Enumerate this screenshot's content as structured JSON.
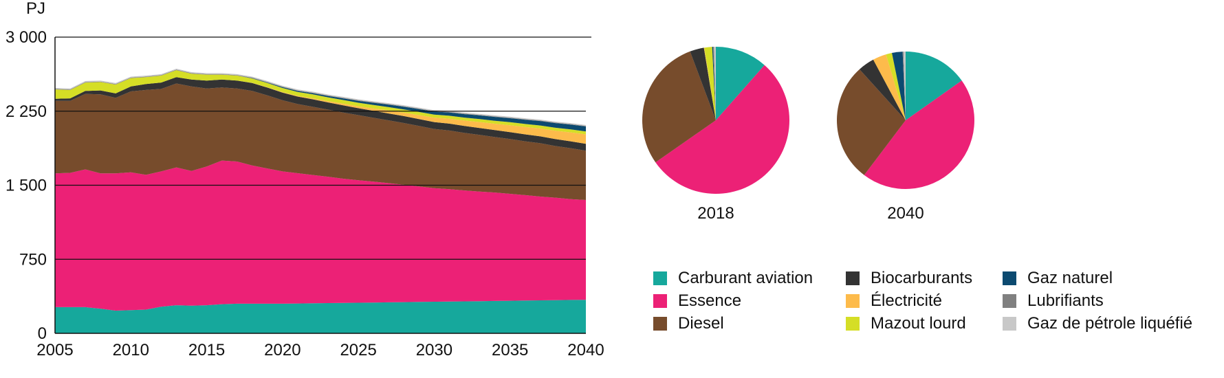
{
  "chart_data": [
    {
      "type": "area",
      "stacked": true,
      "ylabel": "PJ",
      "ylim": [
        0,
        3000
      ],
      "yticks": [
        0,
        750,
        1500,
        2250,
        3000
      ],
      "ytick_labels": [
        "0",
        "750",
        "1 500",
        "2 250",
        "3 000"
      ],
      "xlim": [
        2005,
        2040
      ],
      "xticks": [
        2005,
        2010,
        2015,
        2020,
        2025,
        2030,
        2035,
        2040
      ],
      "xtick_labels": [
        "2005",
        "2010",
        "2015",
        "2020",
        "2025",
        "2030",
        "2035",
        "2040"
      ],
      "grid": "horizontal",
      "x": [
        2005,
        2006,
        2007,
        2008,
        2009,
        2010,
        2011,
        2012,
        2013,
        2014,
        2015,
        2016,
        2017,
        2018,
        2019,
        2020,
        2021,
        2022,
        2023,
        2024,
        2025,
        2026,
        2027,
        2028,
        2029,
        2030,
        2031,
        2032,
        2033,
        2034,
        2035,
        2036,
        2037,
        2038,
        2039,
        2040
      ],
      "series": [
        {
          "name": "Carburant aviation",
          "color": "#16A89C",
          "values": [
            265,
            265,
            265,
            250,
            230,
            235,
            240,
            270,
            285,
            280,
            285,
            295,
            300,
            300,
            300,
            300,
            302,
            304,
            306,
            308,
            310,
            312,
            314,
            316,
            318,
            320,
            322,
            324,
            326,
            328,
            330,
            332,
            334,
            336,
            338,
            340
          ]
        },
        {
          "name": "Essence",
          "color": "#EC2176",
          "values": [
            1355,
            1360,
            1395,
            1370,
            1390,
            1395,
            1365,
            1370,
            1395,
            1365,
            1405,
            1455,
            1440,
            1400,
            1370,
            1340,
            1320,
            1300,
            1280,
            1258,
            1240,
            1224,
            1207,
            1188,
            1170,
            1150,
            1138,
            1123,
            1110,
            1098,
            1083,
            1068,
            1051,
            1038,
            1021,
            1010
          ]
        },
        {
          "name": "Diesel",
          "color": "#774C2C",
          "values": [
            735,
            730,
            765,
            800,
            765,
            820,
            860,
            835,
            850,
            855,
            790,
            740,
            740,
            755,
            740,
            720,
            700,
            690,
            680,
            670,
            660,
            647,
            636,
            626,
            612,
            600,
            594,
            583,
            574,
            562,
            555,
            545,
            540,
            523,
            516,
            500
          ]
        },
        {
          "name": "Biocarburants",
          "color": "#333333",
          "values": [
            20,
            25,
            30,
            40,
            45,
            50,
            60,
            65,
            65,
            70,
            80,
            80,
            80,
            80,
            79,
            78,
            76,
            76,
            73,
            73,
            70,
            70,
            70,
            70,
            70,
            70,
            70,
            70,
            70,
            70,
            70,
            70,
            70,
            70,
            70,
            70
          ]
        },
        {
          "name": "Électricité",
          "color": "#FDBB4B",
          "values": [
            0,
            0,
            0,
            0,
            0,
            0,
            0,
            0,
            0,
            0,
            0,
            0,
            0,
            2,
            3,
            5,
            7,
            10,
            13,
            17,
            20,
            25,
            30,
            35,
            40,
            45,
            50,
            55,
            60,
            65,
            70,
            75,
            80,
            85,
            90,
            95
          ]
        },
        {
          "name": "Mazout lourd",
          "color": "#D5DE26",
          "values": [
            95,
            85,
            85,
            85,
            90,
            85,
            70,
            70,
            70,
            60,
            60,
            50,
            50,
            45,
            43,
            42,
            40,
            40,
            38,
            37,
            35,
            35,
            34,
            33,
            32,
            30,
            30,
            30,
            30,
            30,
            30,
            30,
            30,
            30,
            30,
            30
          ]
        },
        {
          "name": "Gaz naturel",
          "color": "#0C4A70",
          "values": [
            0,
            0,
            0,
            0,
            0,
            0,
            0,
            0,
            0,
            0,
            0,
            0,
            0,
            3,
            5,
            8,
            10,
            12,
            14,
            17,
            20,
            22,
            25,
            27,
            29,
            31,
            33,
            35,
            37,
            39,
            41,
            43,
            45,
            47,
            49,
            50
          ]
        },
        {
          "name": "Lubrifiants",
          "color": "#808080",
          "values": [
            5,
            5,
            5,
            5,
            5,
            5,
            5,
            5,
            5,
            5,
            5,
            5,
            5,
            5,
            5,
            5,
            5,
            5,
            5,
            5,
            5,
            5,
            5,
            5,
            5,
            5,
            5,
            5,
            5,
            5,
            5,
            5,
            5,
            5,
            5,
            5
          ]
        },
        {
          "name": "Gaz de pétrole liquéfié",
          "color": "#C8C8C8",
          "values": [
            10,
            10,
            10,
            10,
            10,
            10,
            10,
            10,
            10,
            10,
            10,
            10,
            10,
            10,
            10,
            10,
            10,
            10,
            10,
            10,
            10,
            10,
            10,
            10,
            10,
            10,
            10,
            10,
            10,
            10,
            10,
            10,
            10,
            10,
            10,
            10
          ]
        }
      ]
    },
    {
      "type": "pie",
      "label": "2018",
      "slices": [
        {
          "name": "Carburant aviation",
          "color": "#16A89C",
          "value": 11.5
        },
        {
          "name": "Essence",
          "color": "#EC2176",
          "value": 53.8
        },
        {
          "name": "Diesel",
          "color": "#774C2C",
          "value": 29.0
        },
        {
          "name": "Biocarburants",
          "color": "#333333",
          "value": 3.1
        },
        {
          "name": "Électricité",
          "color": "#FDBB4B",
          "value": 0.1
        },
        {
          "name": "Mazout lourd",
          "color": "#D5DE26",
          "value": 1.7
        },
        {
          "name": "Gaz naturel",
          "color": "#0C4A70",
          "value": 0.2
        },
        {
          "name": "Lubrifiants",
          "color": "#808080",
          "value": 0.2
        },
        {
          "name": "Gaz de pétrole liquéfié",
          "color": "#C8C8C8",
          "value": 0.4
        }
      ]
    },
    {
      "type": "pie",
      "label": "2040",
      "slices": [
        {
          "name": "Carburant aviation",
          "color": "#16A89C",
          "value": 15.2
        },
        {
          "name": "Essence",
          "color": "#EC2176",
          "value": 45.1
        },
        {
          "name": "Diesel",
          "color": "#774C2C",
          "value": 28.0
        },
        {
          "name": "Biocarburants",
          "color": "#333333",
          "value": 3.9
        },
        {
          "name": "Électricité",
          "color": "#FDBB4B",
          "value": 3.2
        },
        {
          "name": "Mazout lourd",
          "color": "#D5DE26",
          "value": 1.4
        },
        {
          "name": "Gaz naturel",
          "color": "#0C4A70",
          "value": 2.5
        },
        {
          "name": "Lubrifiants",
          "color": "#808080",
          "value": 0.2
        },
        {
          "name": "Gaz de pétrole liquéfié",
          "color": "#C8C8C8",
          "value": 0.5
        }
      ]
    }
  ],
  "legend": [
    {
      "label": "Carburant aviation",
      "color": "#16A89C"
    },
    {
      "label": "Essence",
      "color": "#EC2176"
    },
    {
      "label": "Diesel",
      "color": "#774C2C"
    },
    {
      "label": "Biocarburants",
      "color": "#333333"
    },
    {
      "label": "Électricité",
      "color": "#FDBB4B"
    },
    {
      "label": "Mazout lourd",
      "color": "#D5DE26"
    },
    {
      "label": "Gaz naturel",
      "color": "#0C4A70"
    },
    {
      "label": "Lubrifiants",
      "color": "#808080"
    },
    {
      "label": "Gaz de pétrole liquéfié",
      "color": "#C8C8C8"
    }
  ]
}
